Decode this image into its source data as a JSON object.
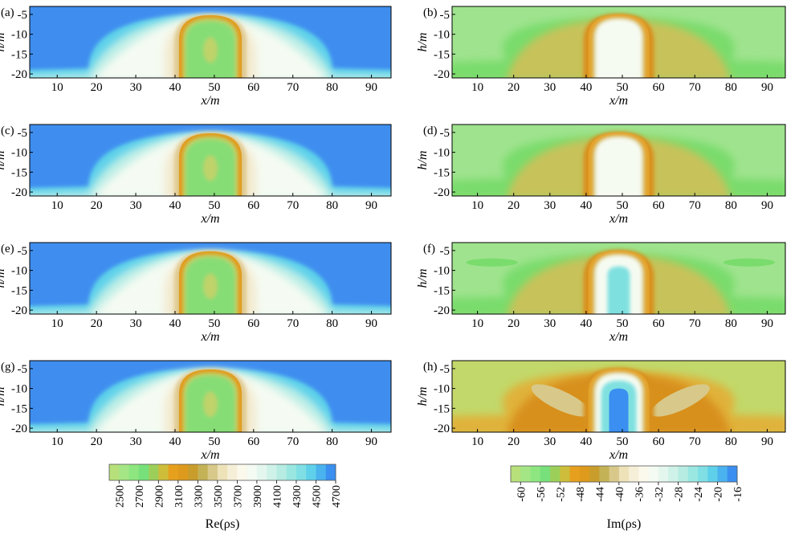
{
  "chart_data": [
    {
      "type": "heatmap",
      "panel_label": "(a)",
      "field": "real",
      "xlabel": "x/m",
      "ylabel": "h/m",
      "x_ticks": [
        "10",
        "20",
        "30",
        "40",
        "50",
        "60",
        "70",
        "80",
        "90"
      ],
      "y_ticks": [
        "-5",
        "-10",
        "-15",
        "-20"
      ],
      "xlim": [
        3,
        95
      ],
      "ylim": [
        -21,
        -3
      ],
      "anomaly": {
        "x_left": 41,
        "x_right": 57,
        "top": -5,
        "core": "green-yellow"
      }
    },
    {
      "type": "heatmap",
      "panel_label": "(b)",
      "field": "imag",
      "xlabel": "x/m",
      "ylabel": "h/m",
      "x_ticks": [
        "10",
        "20",
        "30",
        "40",
        "50",
        "60",
        "70",
        "80",
        "90"
      ],
      "y_ticks": [
        "-5",
        "-10",
        "-15",
        "-20"
      ],
      "xlim": [
        3,
        95
      ],
      "ylim": [
        -21,
        -3
      ],
      "anomaly": {
        "x_left": 41,
        "x_right": 57,
        "top": -5,
        "core": "white"
      }
    },
    {
      "type": "heatmap",
      "panel_label": "(c)",
      "field": "real",
      "xlabel": "x/m",
      "ylabel": "h/m",
      "x_ticks": [
        "10",
        "20",
        "30",
        "40",
        "50",
        "60",
        "70",
        "80",
        "90"
      ],
      "y_ticks": [
        "-5",
        "-10",
        "-15",
        "-20"
      ],
      "xlim": [
        3,
        95
      ],
      "ylim": [
        -21,
        -3
      ],
      "anomaly": {
        "x_left": 41,
        "x_right": 57,
        "top": -5,
        "core": "green-yellow"
      }
    },
    {
      "type": "heatmap",
      "panel_label": "(d)",
      "field": "imag",
      "xlabel": "x/m",
      "ylabel": "h/m",
      "x_ticks": [
        "10",
        "20",
        "30",
        "40",
        "50",
        "60",
        "70",
        "80",
        "90"
      ],
      "y_ticks": [
        "-5",
        "-10",
        "-15",
        "-20"
      ],
      "xlim": [
        3,
        95
      ],
      "ylim": [
        -21,
        -3
      ],
      "anomaly": {
        "x_left": 41,
        "x_right": 57,
        "top": -5,
        "core": "white"
      }
    },
    {
      "type": "heatmap",
      "panel_label": "(e)",
      "field": "real",
      "xlabel": "x/m",
      "ylabel": "h/m",
      "x_ticks": [
        "10",
        "20",
        "30",
        "40",
        "50",
        "60",
        "70",
        "80",
        "90"
      ],
      "y_ticks": [
        "-5",
        "-10",
        "-15",
        "-20"
      ],
      "xlim": [
        3,
        95
      ],
      "ylim": [
        -21,
        -3
      ],
      "anomaly": {
        "x_left": 41,
        "x_right": 57,
        "top": -5,
        "core": "green-yellow"
      }
    },
    {
      "type": "heatmap",
      "panel_label": "(f)",
      "field": "imag",
      "xlabel": "x/m",
      "ylabel": "h/m",
      "x_ticks": [
        "10",
        "20",
        "30",
        "40",
        "50",
        "60",
        "70",
        "80",
        "90"
      ],
      "y_ticks": [
        "-5",
        "-10",
        "-15",
        "-20"
      ],
      "xlim": [
        3,
        95
      ],
      "ylim": [
        -21,
        -3
      ],
      "anomaly": {
        "x_left": 41,
        "x_right": 57,
        "top": -5,
        "core": "cyan"
      }
    },
    {
      "type": "heatmap",
      "panel_label": "(g)",
      "field": "real",
      "xlabel": "x/m",
      "ylabel": "h/m",
      "x_ticks": [
        "10",
        "20",
        "30",
        "40",
        "50",
        "60",
        "70",
        "80",
        "90"
      ],
      "y_ticks": [
        "-5",
        "-10",
        "-15",
        "-20"
      ],
      "xlim": [
        3,
        95
      ],
      "ylim": [
        -21,
        -3
      ],
      "anomaly": {
        "x_left": 41,
        "x_right": 57,
        "top": -5,
        "core": "green-yellow"
      }
    },
    {
      "type": "heatmap",
      "panel_label": "(h)",
      "field": "imag",
      "xlabel": "x/m",
      "ylabel": "h/m",
      "x_ticks": [
        "10",
        "20",
        "30",
        "40",
        "50",
        "60",
        "70",
        "80",
        "90"
      ],
      "y_ticks": [
        "-5",
        "-10",
        "-15",
        "-20"
      ],
      "xlim": [
        3,
        95
      ],
      "ylim": [
        -21,
        -3
      ],
      "anomaly": {
        "x_left": 41,
        "x_right": 57,
        "top": -5,
        "core": "blue"
      }
    }
  ],
  "colorbars": {
    "real": {
      "label": "Re(ρs)",
      "tick_labels": [
        "2500",
        "2700",
        "2900",
        "3100",
        "3300",
        "3500",
        "3700",
        "3900",
        "4100",
        "4300",
        "4500",
        "4700"
      ],
      "colors": [
        "#b7e07a",
        "#a4e685",
        "#8de67f",
        "#77e07a",
        "#9ccf5a",
        "#cdbd3a",
        "#e6a01e",
        "#dd9a1c",
        "#c99d2c",
        "#c4b256",
        "#d8c98a",
        "#ede2b8",
        "#f6efd8",
        "#fbf8ec",
        "#f3fbf3",
        "#e4f7ee",
        "#cff2e8",
        "#b6ece2",
        "#9ae7e1",
        "#7fdfe4",
        "#5fd0ea",
        "#4ab2ee",
        "#3a8ff0"
      ]
    },
    "imag": {
      "label": "Im(ρs)",
      "tick_labels": [
        "-60",
        "-56",
        "-52",
        "-48",
        "-44",
        "-40",
        "-36",
        "-32",
        "-28",
        "-24",
        "-20",
        "-16"
      ],
      "colors": [
        "#b7e07a",
        "#a4e685",
        "#8de67f",
        "#77e07a",
        "#9ccf5a",
        "#cdbd3a",
        "#e6a01e",
        "#dd9a1c",
        "#c99d2c",
        "#c4b256",
        "#d8c98a",
        "#ede2b8",
        "#f6efd8",
        "#fbf8ec",
        "#f3fbf3",
        "#e4f7ee",
        "#cff2e8",
        "#b6ece2",
        "#9ae7e1",
        "#7fdfe4",
        "#5fd0ea",
        "#4ab2ee",
        "#3a8ff0"
      ]
    }
  },
  "palette": {
    "re_background": "#3f8eef",
    "re_midband": "#5cd0ea",
    "re_pale": "#bdeee6",
    "re_white": "#f5fbf2",
    "re_cream": "#f3ead0",
    "re_tan": "#dfc98f",
    "re_orange": "#e29b1d",
    "re_green": "#86dd76",
    "re_yellowgreen": "#bfd36a",
    "im_background": "#9fe38e",
    "im_green": "#79dc6c",
    "im_olive": "#c7c25a",
    "im_orange": "#e3a22a",
    "im_darkorange": "#d8901c",
    "im_tan": "#d8c98a",
    "im_white": "#f6fbf2",
    "im_cyan": "#7fe0e0",
    "im_blue": "#3a8ff0",
    "im_h_background": "#c2d86a",
    "im_h_gold": "#e0b23a"
  }
}
